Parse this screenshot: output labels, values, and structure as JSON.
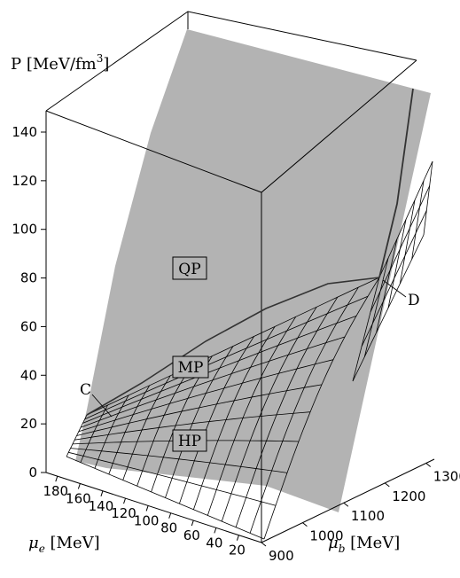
{
  "chart_data": {
    "type": "surface3d",
    "zlabel": "P [MeV/fm3]",
    "zlabel_main": "P [MeV/fm",
    "zlabel_sup": "3",
    "zlabel_close": "]",
    "xlabel": "μe [MeV]",
    "xlabel_sym": "μ",
    "xlabel_sub": "e",
    "xlabel_unit": " [MeV]",
    "ylabel": "μb [MeV]",
    "ylabel_sym": "μ",
    "ylabel_sub": "b",
    "ylabel_unit": " [MeV]",
    "z_ticks": [
      "0",
      "20",
      "40",
      "60",
      "80",
      "100",
      "120",
      "140"
    ],
    "z_range": [
      0,
      150
    ],
    "x_ticks": [
      "180",
      "160",
      "140",
      "120",
      "100",
      "80",
      "60",
      "40",
      "20"
    ],
    "x_range": [
      0,
      190
    ],
    "y_ticks": [
      "900",
      "1000",
      "1100",
      "1200",
      "1300"
    ],
    "y_range": [
      900,
      1320
    ],
    "regions": [
      {
        "label": "QP",
        "fill": "#b3b3b3"
      },
      {
        "label": "MP",
        "fill": "#b3b3b3"
      },
      {
        "label": "HP",
        "fill": "#b3b3b3"
      }
    ],
    "points": [
      {
        "label": "C"
      },
      {
        "label": "D"
      }
    ],
    "colors": {
      "qp_surface": "#b3b3b3",
      "box": "#000000",
      "grid": "#000000"
    }
  }
}
